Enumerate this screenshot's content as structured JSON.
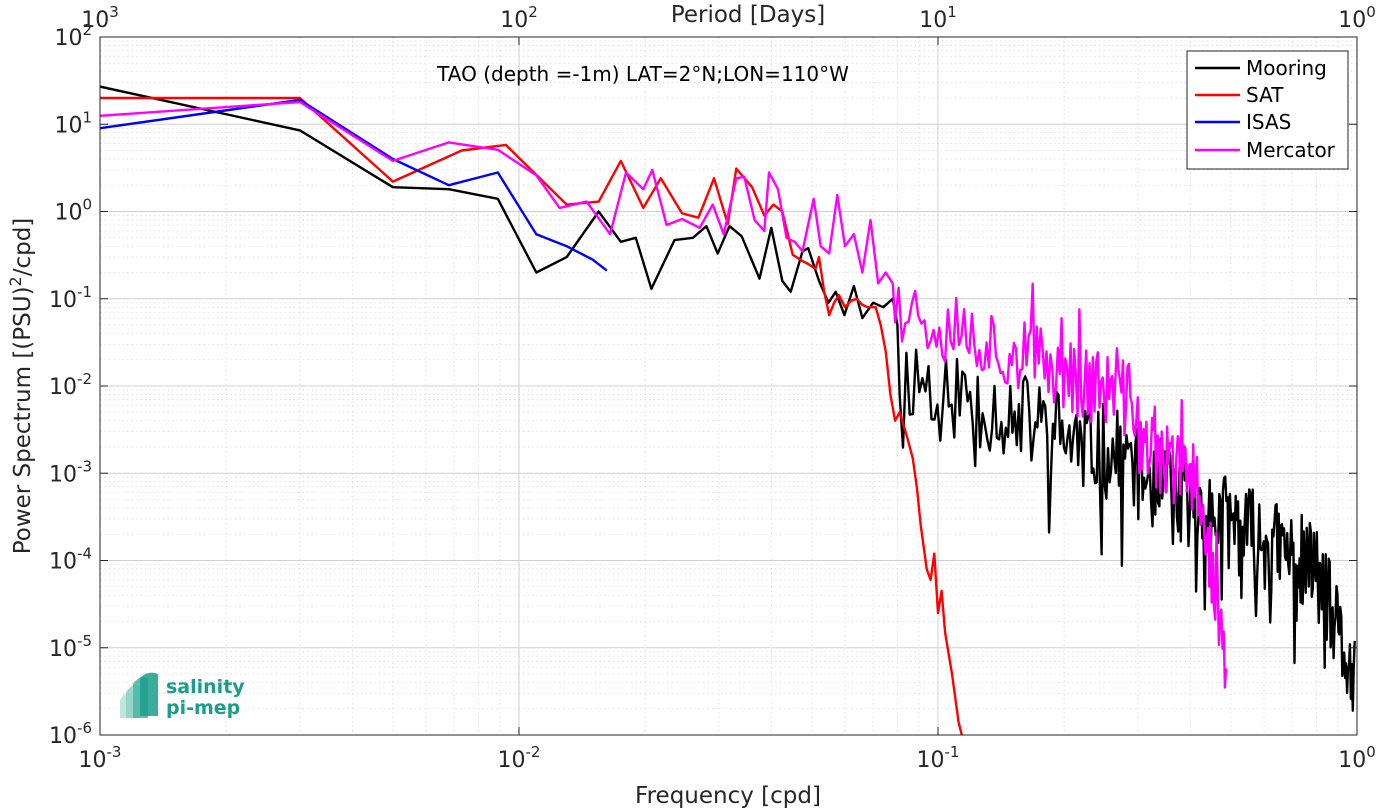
{
  "chart_data": {
    "type": "line",
    "title": "TAO (depth =-1m) LAT=2°N;LON=110°W",
    "xlabel": "Frequency [cpd]",
    "ylabel": "Power Spectrum [(PSU)²/cpd]",
    "ylabel_parts": [
      "Power Spectrum [(PSU)",
      "2",
      "/cpd]"
    ],
    "x2label": "Period [Days]",
    "x_scale": "log",
    "y_scale": "log",
    "xlim": [
      0.001,
      1
    ],
    "ylim": [
      1e-06,
      100
    ],
    "grid": true,
    "legend_position": "top-right",
    "x_ticks": [
      {
        "b": "10",
        "e": "-3",
        "v": 0.001
      },
      {
        "b": "10",
        "e": "-2",
        "v": 0.01
      },
      {
        "b": "10",
        "e": "-1",
        "v": 0.1
      },
      {
        "b": "10",
        "e": "0",
        "v": 1
      }
    ],
    "x2_ticks": [
      {
        "b": "10",
        "e": "3",
        "v": 0.001
      },
      {
        "b": "10",
        "e": "2",
        "v": 0.01
      },
      {
        "b": "10",
        "e": "1",
        "v": 0.1
      },
      {
        "b": "10",
        "e": "0",
        "v": 1
      }
    ],
    "y_ticks": [
      {
        "b": "10",
        "e": "2",
        "v": 100
      },
      {
        "b": "10",
        "e": "1",
        "v": 10
      },
      {
        "b": "10",
        "e": "0",
        "v": 1
      },
      {
        "b": "10",
        "e": "-1",
        "v": 0.1
      },
      {
        "b": "10",
        "e": "-2",
        "v": 0.01
      },
      {
        "b": "10",
        "e": "-3",
        "v": 0.001
      },
      {
        "b": "10",
        "e": "-4",
        "v": 0.0001
      },
      {
        "b": "10",
        "e": "-5",
        "v": 1e-05
      },
      {
        "b": "10",
        "e": "-6",
        "v": 1e-06
      }
    ],
    "series": [
      {
        "name": "Mooring",
        "color": "#000000",
        "generated": "mooring",
        "seed": 11,
        "points": [
          [
            0.001,
            27
          ],
          [
            0.003,
            8.5
          ],
          [
            0.005,
            1.9
          ],
          [
            0.0068,
            1.8
          ],
          [
            0.0089,
            1.4
          ],
          [
            0.011,
            0.2
          ],
          [
            0.013,
            0.3
          ],
          [
            0.0155,
            1.0
          ],
          [
            0.0175,
            0.45
          ],
          [
            0.019,
            0.5
          ],
          [
            0.0207,
            0.13
          ],
          [
            0.0235,
            0.47
          ],
          [
            0.026,
            0.5
          ],
          [
            0.028,
            0.68
          ],
          [
            0.0298,
            0.33
          ],
          [
            0.0318,
            0.68
          ],
          [
            0.034,
            0.52
          ],
          [
            0.0375,
            0.17
          ],
          [
            0.04,
            0.65
          ],
          [
            0.0425,
            0.16
          ],
          [
            0.0445,
            0.12
          ],
          [
            0.0475,
            0.35
          ],
          [
            0.049,
            0.38
          ],
          [
            0.052,
            0.16
          ],
          [
            0.0548,
            0.09
          ],
          [
            0.057,
            0.12
          ],
          [
            0.0598,
            0.065
          ],
          [
            0.063,
            0.14
          ],
          [
            0.066,
            0.06
          ],
          [
            0.07,
            0.09
          ],
          [
            0.074,
            0.08
          ],
          [
            0.078,
            0.1
          ],
          [
            0.08,
            0.05
          ]
        ]
      },
      {
        "name": "SAT",
        "color": "#ff0000",
        "generated": "sat",
        "seed": 23,
        "points": [
          [
            0.001,
            20
          ],
          [
            0.003,
            20
          ],
          [
            0.005,
            2.2
          ],
          [
            0.0073,
            5.0
          ],
          [
            0.0093,
            5.8
          ],
          [
            0.013,
            1.2
          ],
          [
            0.0155,
            1.3
          ],
          [
            0.0175,
            3.8
          ],
          [
            0.0198,
            1.1
          ],
          [
            0.0218,
            2.4
          ],
          [
            0.0245,
            0.95
          ],
          [
            0.0268,
            0.85
          ],
          [
            0.0292,
            2.4
          ],
          [
            0.0315,
            0.72
          ],
          [
            0.033,
            3.1
          ],
          [
            0.036,
            1.9
          ],
          [
            0.0385,
            0.9
          ],
          [
            0.0405,
            1.2
          ],
          [
            0.0425,
            1.0
          ],
          [
            0.045,
            0.32
          ],
          [
            0.0475,
            0.27
          ],
          [
            0.049,
            0.25
          ],
          [
            0.051,
            0.22
          ],
          [
            0.052,
            0.3
          ],
          [
            0.0535,
            0.12
          ],
          [
            0.055,
            0.065
          ],
          [
            0.0565,
            0.09
          ],
          [
            0.058,
            0.11
          ],
          [
            0.06,
            0.08
          ],
          [
            0.062,
            0.095
          ],
          [
            0.064,
            0.1
          ],
          [
            0.066,
            0.085
          ],
          [
            0.068,
            0.08
          ],
          [
            0.071,
            0.08
          ],
          [
            0.073,
            0.05
          ],
          [
            0.075,
            0.025
          ],
          [
            0.077,
            0.008
          ],
          [
            0.079,
            0.004
          ],
          [
            0.081,
            0.005
          ],
          [
            0.084,
            0.0028
          ],
          [
            0.087,
            0.0015
          ],
          [
            0.089,
            0.0007
          ],
          [
            0.091,
            0.00025
          ],
          [
            0.094,
            8e-05
          ],
          [
            0.096,
            6e-05
          ],
          [
            0.098,
            0.00012
          ],
          [
            0.1,
            2.5e-05
          ],
          [
            0.102,
            4.5e-05
          ],
          [
            0.104,
            1.5e-05
          ],
          [
            0.108,
            5e-06
          ],
          [
            0.112,
            1.4e-06
          ],
          [
            0.114,
            1e-06
          ]
        ]
      },
      {
        "name": "ISAS",
        "color": "#0000ff",
        "generated": "none",
        "seed": 0,
        "points": [
          [
            0.001,
            9.0
          ],
          [
            0.003,
            19
          ],
          [
            0.005,
            4.0
          ],
          [
            0.0068,
            2.0
          ],
          [
            0.0089,
            2.8
          ],
          [
            0.011,
            0.55
          ],
          [
            0.013,
            0.4
          ],
          [
            0.015,
            0.28
          ],
          [
            0.0162,
            0.21
          ]
        ]
      },
      {
        "name": "Mercator",
        "color": "#ff00ff",
        "generated": "mercator",
        "seed": 37,
        "points": [
          [
            0.001,
            12.5
          ],
          [
            0.003,
            18
          ],
          [
            0.005,
            3.8
          ],
          [
            0.0068,
            6.2
          ],
          [
            0.0089,
            5.1
          ],
          [
            0.011,
            2.6
          ],
          [
            0.0125,
            1.1
          ],
          [
            0.0145,
            1.3
          ],
          [
            0.0165,
            0.55
          ],
          [
            0.018,
            2.8
          ],
          [
            0.0198,
            1.8
          ],
          [
            0.0208,
            3.0
          ],
          [
            0.0225,
            0.7
          ],
          [
            0.0245,
            0.82
          ],
          [
            0.027,
            0.65
          ],
          [
            0.029,
            1.2
          ],
          [
            0.0308,
            0.55
          ],
          [
            0.033,
            2.4
          ],
          [
            0.0345,
            2.5
          ],
          [
            0.0365,
            0.8
          ],
          [
            0.0385,
            0.6
          ],
          [
            0.0395,
            2.8
          ],
          [
            0.0415,
            1.8
          ],
          [
            0.0435,
            0.5
          ],
          [
            0.0455,
            0.45
          ],
          [
            0.0475,
            0.35
          ],
          [
            0.0505,
            1.4
          ],
          [
            0.0525,
            0.4
          ],
          [
            0.055,
            0.33
          ],
          [
            0.0575,
            1.55
          ],
          [
            0.06,
            0.4
          ],
          [
            0.063,
            0.55
          ],
          [
            0.066,
            0.2
          ],
          [
            0.069,
            0.8
          ],
          [
            0.072,
            0.15
          ],
          [
            0.075,
            0.2
          ],
          [
            0.078,
            0.15
          ]
        ]
      }
    ],
    "logo": {
      "line1": "salinity",
      "line2": "pi-mep",
      "color": "#1a9e8c"
    }
  }
}
